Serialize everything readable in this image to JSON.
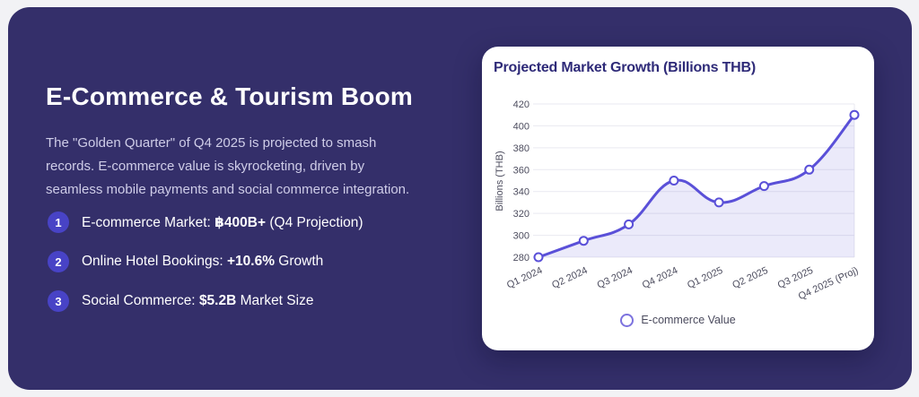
{
  "page": {
    "background": "#f2f2f5",
    "panel_bg": "#342f6a",
    "bullet_bg": "#4843c6",
    "paragraph_color": "#cfcde8",
    "card_bg": "#ffffff",
    "card_title_color": "#2e2a78"
  },
  "left": {
    "heading": "E-Commerce & Tourism Boom",
    "paragraph": "The \"Golden Quarter\" of Q4 2025 is projected to smash\nrecords. E-commerce value is skyrocketing, driven by\nseamless mobile payments and social commerce integration.",
    "items": [
      {
        "number": "1",
        "pre": "E-commerce Market: ",
        "bold": "฿400B+",
        "post": " (Q4 Projection)"
      },
      {
        "number": "2",
        "pre": "Online Hotel Bookings: ",
        "bold": "+10.6%",
        "post": " Growth"
      },
      {
        "number": "3",
        "pre": "Social Commerce: ",
        "bold": "$5.2B",
        "post": " Market Size"
      }
    ]
  },
  "card": {
    "title": "Projected Market Growth (Billions THB)"
  },
  "chart_data": {
    "type": "line",
    "title": "Projected Market Growth (Billions THB)",
    "categories": [
      "Q1 2024",
      "Q2 2024",
      "Q3 2024",
      "Q4 2024",
      "Q1 2025",
      "Q2 2025",
      "Q3 2025",
      "Q4 2025 (Proj)"
    ],
    "series": [
      {
        "name": "E-commerce Value",
        "values": [
          280,
          295,
          310,
          350,
          330,
          345,
          360,
          410
        ]
      }
    ],
    "xlabel": "",
    "ylabel": "Billions (THB)",
    "ylim": [
      280,
      420
    ],
    "ytick_step": 20,
    "grid": true,
    "smooth": true,
    "legend_position": "bottom",
    "colors": {
      "line": "#5a50d8",
      "fill": "rgba(90,80,216,0.12)",
      "grid": "#e9e9f0",
      "axis_text": "#4c4c5e",
      "point_fill": "#ffffff",
      "legend_marker": "#7c72de"
    }
  }
}
